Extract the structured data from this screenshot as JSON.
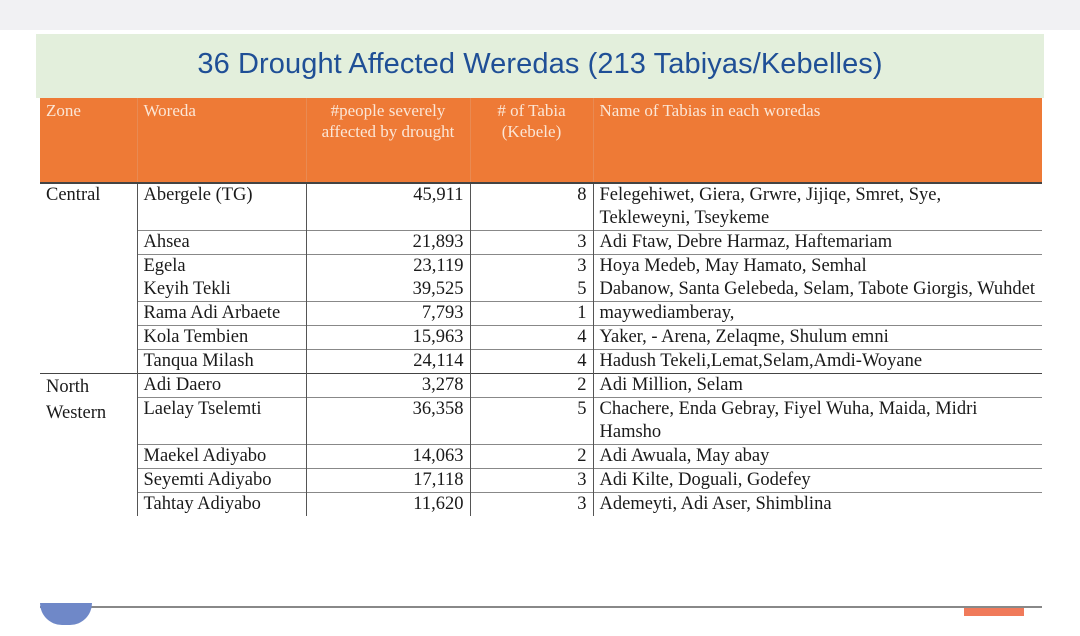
{
  "title": "36 Drought Affected Weredas (213 Tabiyas/Kebelles)",
  "headers": {
    "zone": "Zone",
    "woreda": "Woreda",
    "people": "#people severely affected by drought",
    "tabia": "# of Tabia (Kebele)",
    "names": "Name of Tabias in each woredas"
  },
  "rows": [
    {
      "zone": "Central",
      "woreda": "Abergele (TG)",
      "people": "45,911",
      "tabia": "8",
      "names": "Felegehiwet, Giera, Grwre, Jijiqe, Smret, Sye, Tekleweyni, Tseykeme"
    },
    {
      "zone": "",
      "woreda": "Ahsea",
      "people": "21,893",
      "tabia": "3",
      "names": "Adi Ftaw, Debre Harmaz, Haftemariam"
    },
    {
      "zone": "",
      "woreda": "Egela",
      "people": "23,119",
      "tabia": "3",
      "names": "Hoya Medeb, May Hamato, Semhal"
    },
    {
      "zone": "",
      "woreda": "Keyih Tekli",
      "people": "39,525",
      "tabia": "5",
      "names": "Dabanow, Santa Gelebeda, Selam, Tabote Giorgis, Wuhdet"
    },
    {
      "zone": "",
      "woreda": "Rama Adi Arbaete",
      "people": "7,793",
      "tabia": "1",
      "names": "maywediamberay,"
    },
    {
      "zone": "",
      "woreda": "Kola Tembien",
      "people": "15,963",
      "tabia": "4",
      "names": "Yaker, - Arena, Zelaqme, Shulum emni"
    },
    {
      "zone": "",
      "woreda": "Tanqua Milash",
      "people": "24,114",
      "tabia": "4",
      "names": "Hadush Tekeli,Lemat,Selam,Amdi-Woyane"
    },
    {
      "zone": "North Western",
      "woreda": "Adi Daero",
      "people": "3,278",
      "tabia": "2",
      "names": "Adi Million, Selam"
    },
    {
      "zone": "",
      "woreda": "Laelay Tselemti",
      "people": "36,358",
      "tabia": "5",
      "names": "Chachere, Enda Gebray, Fiyel Wuha, Maida, Midri Hamsho"
    },
    {
      "zone": "",
      "woreda": "Maekel Adiyabo",
      "people": "14,063",
      "tabia": "2",
      "names": "Adi Awuala, May abay"
    },
    {
      "zone": "",
      "woreda": "Seyemti Adiyabo",
      "people": "17,118",
      "tabia": "3",
      "names": "Adi Kilte, Doguali, Godefey"
    },
    {
      "zone": "",
      "woreda": "Tahtay Adiyabo",
      "people": "11,620",
      "tabia": "3",
      "names": "Ademeyti, Adi Aser, Shimblina"
    }
  ]
}
